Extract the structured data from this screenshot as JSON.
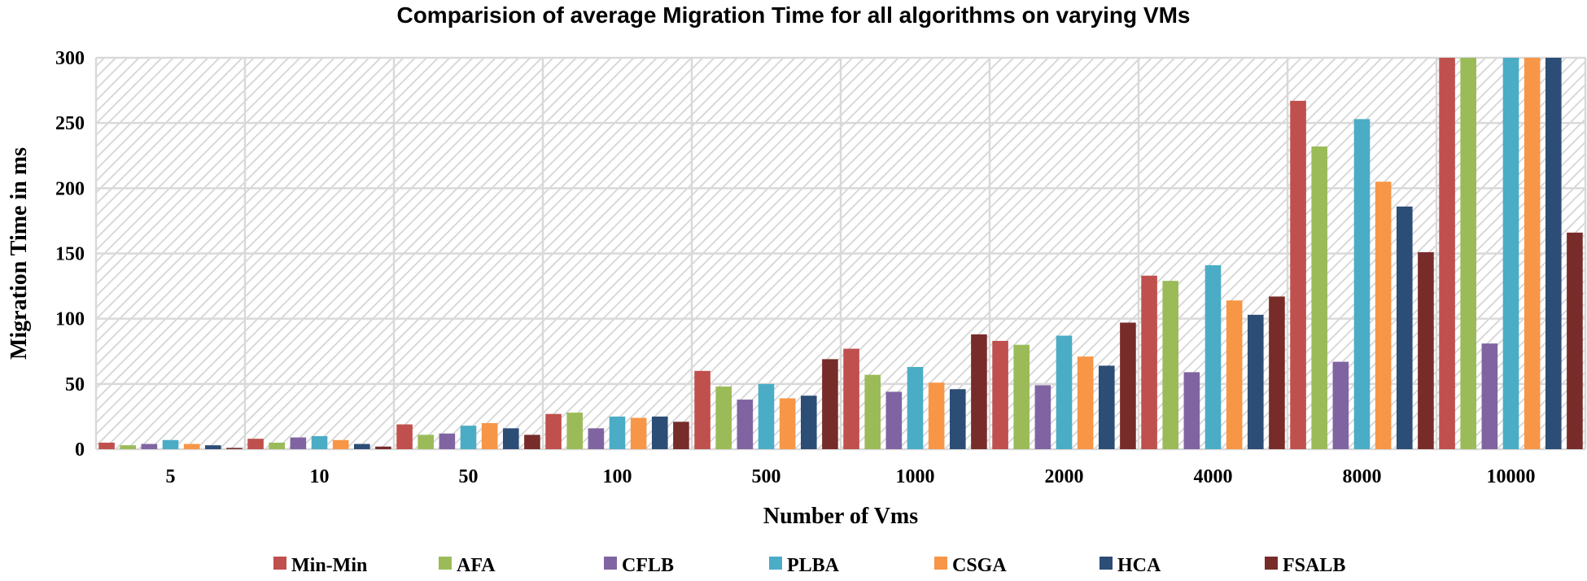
{
  "chart_data": {
    "type": "bar",
    "title": "Comparision of average Migration Time for all algorithms on varying VMs",
    "xlabel": "Number of Vms",
    "ylabel": "Migration Time in ms",
    "ylim": [
      0,
      300
    ],
    "yticks": [
      0,
      50,
      100,
      150,
      200,
      250,
      300
    ],
    "grid": true,
    "legend_position": "bottom",
    "categories": [
      "5",
      "10",
      "50",
      "100",
      "500",
      "1000",
      "2000",
      "4000",
      "8000",
      "10000"
    ],
    "series": [
      {
        "name": "Min-Min",
        "color": "#c0504d",
        "values": [
          5,
          8,
          19,
          27,
          60,
          77,
          83,
          133,
          267,
          300
        ]
      },
      {
        "name": "AFA",
        "color": "#9bbb59",
        "values": [
          3,
          5,
          11,
          28,
          48,
          57,
          80,
          129,
          232,
          300
        ]
      },
      {
        "name": "CFLB",
        "color": "#8064a2",
        "values": [
          4,
          9,
          12,
          16,
          38,
          44,
          49,
          59,
          67,
          81
        ]
      },
      {
        "name": "PLBA",
        "color": "#4bacc6",
        "values": [
          7,
          10,
          18,
          25,
          50,
          63,
          87,
          141,
          253,
          300
        ]
      },
      {
        "name": "CSGA",
        "color": "#f79646",
        "values": [
          4,
          7,
          20,
          24,
          39,
          51,
          71,
          114,
          205,
          300
        ]
      },
      {
        "name": "HCA",
        "color": "#2c4d75",
        "values": [
          3,
          4,
          16,
          25,
          41,
          46,
          64,
          103,
          186,
          300
        ]
      },
      {
        "name": "FSALB",
        "color": "#772c2a",
        "values": [
          1,
          2,
          11,
          21,
          69,
          88,
          97,
          117,
          151,
          166
        ]
      }
    ]
  }
}
